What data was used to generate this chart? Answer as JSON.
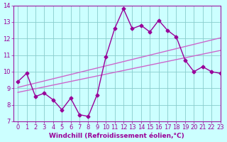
{
  "xlabel": "Windchill (Refroidissement éolien,°C)",
  "x_values": [
    0,
    1,
    2,
    3,
    4,
    5,
    6,
    7,
    8,
    9,
    10,
    11,
    12,
    13,
    14,
    15,
    16,
    17,
    18,
    19,
    20,
    21,
    22,
    23
  ],
  "main_line": [
    9.4,
    9.9,
    8.5,
    8.7,
    8.3,
    7.7,
    8.4,
    7.4,
    7.3,
    8.6,
    10.9,
    12.6,
    13.8,
    12.6,
    12.8,
    12.4,
    13.1,
    12.5,
    12.1,
    10.7,
    10.0,
    10.3,
    10.0,
    9.9
  ],
  "upper_trend": [
    9.05,
    9.18,
    9.31,
    9.44,
    9.57,
    9.7,
    9.83,
    9.96,
    10.09,
    10.22,
    10.35,
    10.48,
    10.61,
    10.74,
    10.87,
    11.0,
    11.13,
    11.26,
    11.39,
    11.52,
    11.65,
    11.78,
    11.91,
    12.04
  ],
  "lower_trend": [
    8.75,
    8.86,
    8.97,
    9.08,
    9.19,
    9.3,
    9.41,
    9.52,
    9.63,
    9.74,
    9.85,
    9.96,
    10.07,
    10.18,
    10.29,
    10.4,
    10.51,
    10.62,
    10.73,
    10.84,
    10.95,
    11.06,
    11.17,
    11.28
  ],
  "line_color": "#990099",
  "trend_color_upper": "#cc66cc",
  "trend_color_lower": "#cc66cc",
  "bg_color": "#ccffff",
  "grid_color": "#88cccc",
  "ylim": [
    7,
    14
  ],
  "xlim": [
    -0.5,
    23
  ],
  "yticks": [
    7,
    8,
    9,
    10,
    11,
    12,
    13,
    14
  ],
  "xticks": [
    0,
    1,
    2,
    3,
    4,
    5,
    6,
    7,
    8,
    9,
    10,
    11,
    12,
    13,
    14,
    15,
    16,
    17,
    18,
    19,
    20,
    21,
    22,
    23
  ],
  "marker": "D",
  "markersize": 2.5,
  "linewidth": 1.0,
  "fontsize_label": 6.5,
  "fontsize_tick": 6
}
